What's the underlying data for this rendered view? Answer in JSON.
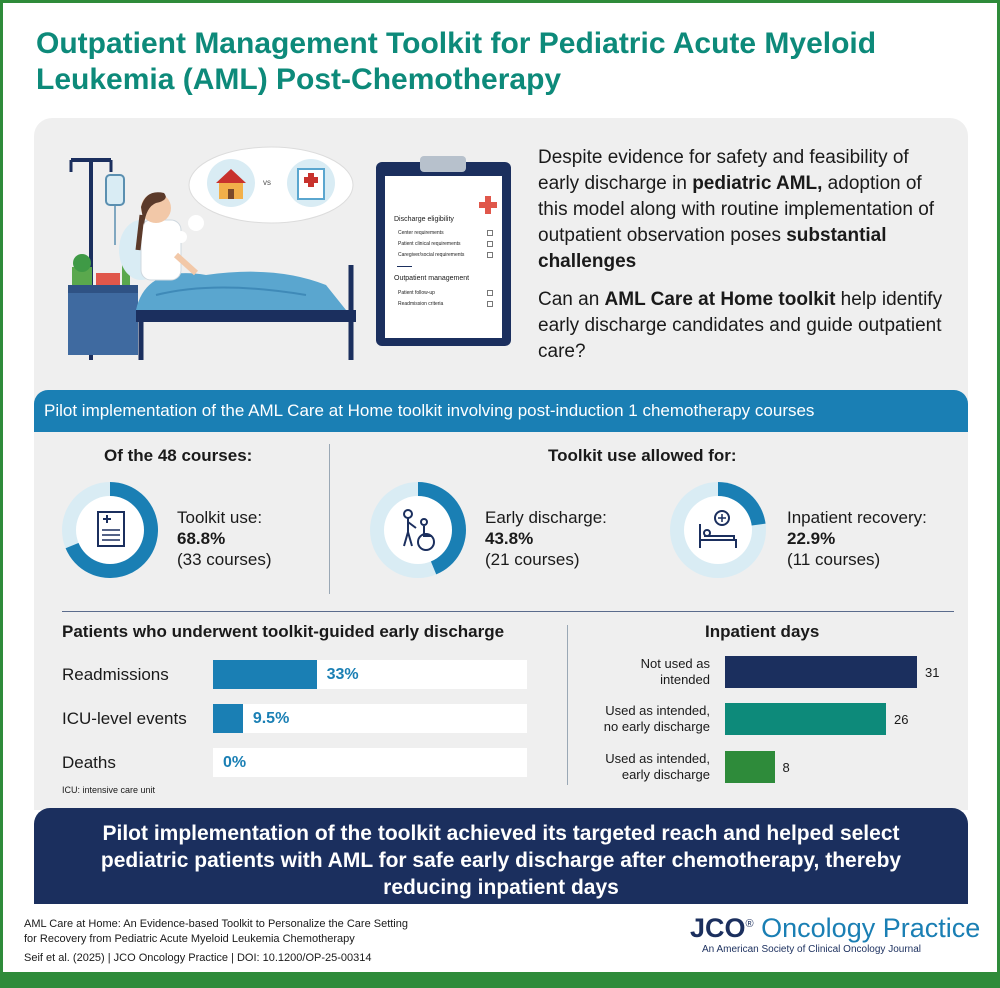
{
  "title": "Outpatient Management Toolkit for Pediatric Acute Myeloid Leukemia (AML) Post-Chemotherapy",
  "colors": {
    "teal": "#0d8a7a",
    "blue": "#1a7fb4",
    "navy": "#1b2f5e",
    "green": "#2e8b3a",
    "panel": "#efefef"
  },
  "illustration": {
    "vs_label": "vs",
    "clipboard": {
      "eligibility_title": "Discharge eligibility",
      "eligibility_items": [
        "Center requirements",
        "Patient clinical requirements",
        "Caregiver/social requirements"
      ],
      "management_title": "Outpatient management",
      "management_items": [
        "Patient follow-up",
        "Readmission criteria"
      ]
    }
  },
  "intro": {
    "p1_a": "Despite evidence for safety and feasibility of early discharge in ",
    "p1_b": "pediatric AML,",
    "p1_c": " adoption of this model along with routine implementation of outpatient observation poses ",
    "p1_d": "substantial challenges",
    "q_a": "Can an ",
    "q_b": "AML Care at Home toolkit",
    "q_c": " help identify early discharge candidates and guide outpatient care?"
  },
  "pilot_banner": "Pilot implementation of the AML Care at Home toolkit involving post-induction 1 chemotherapy courses",
  "courses": {
    "heading": "Of the 48 courses:",
    "toolkit_use": {
      "label": "Toolkit use:",
      "percent": "68.8%",
      "count": "(33 courses)",
      "fraction": 0.688,
      "icon": "document-icon"
    }
  },
  "allowed": {
    "heading": "Toolkit use allowed for:",
    "early": {
      "label": "Early discharge:",
      "percent": "43.8%",
      "count": "(21 courses)",
      "fraction": 0.438,
      "icon": "wheelchair-icon"
    },
    "inpatient": {
      "label": "Inpatient recovery:",
      "percent": "22.9%",
      "count": "(11 courses)",
      "fraction": 0.229,
      "icon": "hospital-bed-icon"
    }
  },
  "early_discharge": {
    "heading": "Patients who underwent toolkit-guided early discharge",
    "rows": [
      {
        "label": "Readmissions",
        "value": "33%",
        "fraction": 0.33
      },
      {
        "label": "ICU-level events",
        "value": "9.5%",
        "fraction": 0.095
      },
      {
        "label": "Deaths",
        "value": "0%",
        "fraction": 0
      }
    ],
    "footnote": "ICU: intensive care unit"
  },
  "inpatient_days": {
    "heading": "Inpatient days",
    "rows": [
      {
        "label_1": "Not used as",
        "label_2": "intended",
        "value": "31",
        "days": 31,
        "color": "#1b2f5e"
      },
      {
        "label_1": "Used as intended,",
        "label_2": "no early discharge",
        "value": "26",
        "days": 26,
        "color": "#0d8a7a"
      },
      {
        "label_1": "Used as intended,",
        "label_2": "early discharge",
        "value": "8",
        "days": 8,
        "color": "#2e8b3a"
      }
    ]
  },
  "conclusion": "Pilot implementation of the toolkit achieved its targeted reach and helped select pediatric patients with AML for safe early discharge after chemotherapy, thereby reducing inpatient days",
  "citation": {
    "line1": "AML Care at Home: An Evidence-based Toolkit to Personalize the Care Setting",
    "line2": "for Recovery from Pediatric Acute Myeloid Leukemia Chemotherapy",
    "line3": "Seif et al. (2025) | JCO Oncology Practice | DOI: 10.1200/OP-25-00314"
  },
  "journal": {
    "jco": "JCO",
    "reg": "®",
    "name": " Oncology Practice",
    "tagline": "An American Society of Clinical Oncology Journal"
  }
}
